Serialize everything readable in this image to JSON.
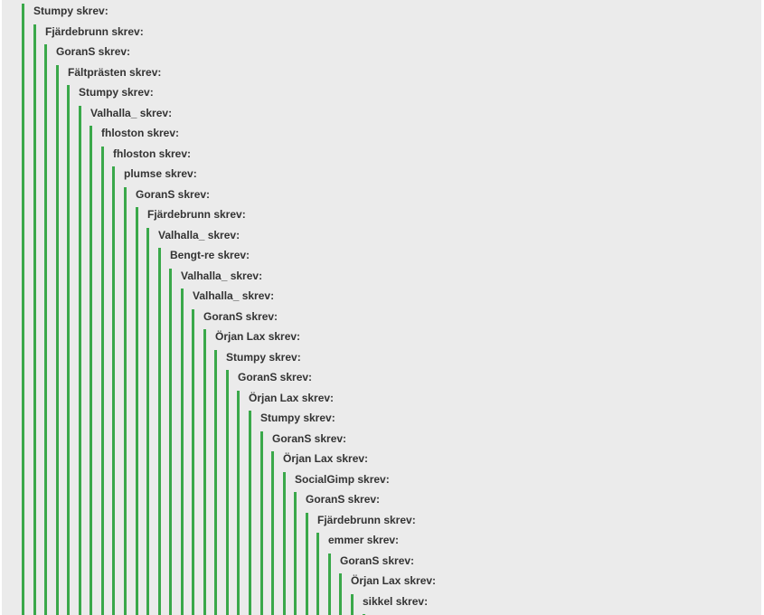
{
  "suffix": "skrev:",
  "colors": {
    "panel_background": "#ebebeb",
    "quote_bar": "#3aa84a",
    "author_text": "#333333"
  },
  "quotes": [
    {
      "author": "Stumpy skrev:"
    },
    {
      "author": "Fjärdebrunn skrev:"
    },
    {
      "author": "GoranS skrev:"
    },
    {
      "author": "Fältprästen skrev:"
    },
    {
      "author": "Stumpy skrev:"
    },
    {
      "author": "Valhalla_ skrev:"
    },
    {
      "author": "fhloston skrev:"
    },
    {
      "author": "fhloston skrev:"
    },
    {
      "author": "plumse skrev:"
    },
    {
      "author": "GoranS skrev:"
    },
    {
      "author": "Fjärdebrunn skrev:"
    },
    {
      "author": "Valhalla_ skrev:"
    },
    {
      "author": "Bengt-re skrev:"
    },
    {
      "author": "Valhalla_ skrev:"
    },
    {
      "author": "Valhalla_ skrev:"
    },
    {
      "author": "GoranS skrev:"
    },
    {
      "author": "Örjan Lax skrev:"
    },
    {
      "author": "Stumpy skrev:"
    },
    {
      "author": "GoranS skrev:"
    },
    {
      "author": "Örjan Lax skrev:"
    },
    {
      "author": "Stumpy skrev:"
    },
    {
      "author": "GoranS skrev:"
    },
    {
      "author": "Örjan Lax skrev:"
    },
    {
      "author": "SocialGimp skrev:"
    },
    {
      "author": "GoranS skrev:"
    },
    {
      "author": "Fjärdebrunn skrev:"
    },
    {
      "author": "emmer skrev:"
    },
    {
      "author": "GoranS skrev:"
    },
    {
      "author": "Örjan Lax skrev:"
    },
    {
      "author": "sikkel skrev:"
    }
  ]
}
